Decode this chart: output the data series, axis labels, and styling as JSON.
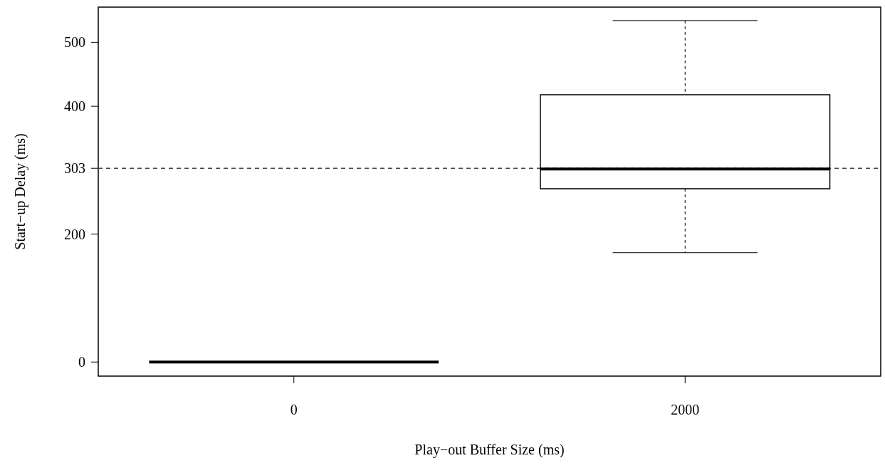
{
  "chart_data": {
    "type": "box",
    "categories": [
      "0",
      "2000"
    ],
    "boxes": [
      {
        "low": 0,
        "q1": 0,
        "median": 0,
        "q3": 0,
        "high": 0
      },
      {
        "low": 171,
        "q1": 271,
        "median": 302,
        "q3": 418,
        "high": 534
      }
    ],
    "color": "#000000",
    "ylim": [
      -22,
      555
    ],
    "yticks": [
      0,
      200,
      303,
      400,
      500
    ],
    "xlabel": "Play−out Buffer Size (ms)",
    "ylabel": "Start−up Delay (ms)",
    "ref_lines": [
      {
        "axis": "y",
        "value": 303,
        "line_style": "dashed"
      }
    ],
    "grid": false
  }
}
